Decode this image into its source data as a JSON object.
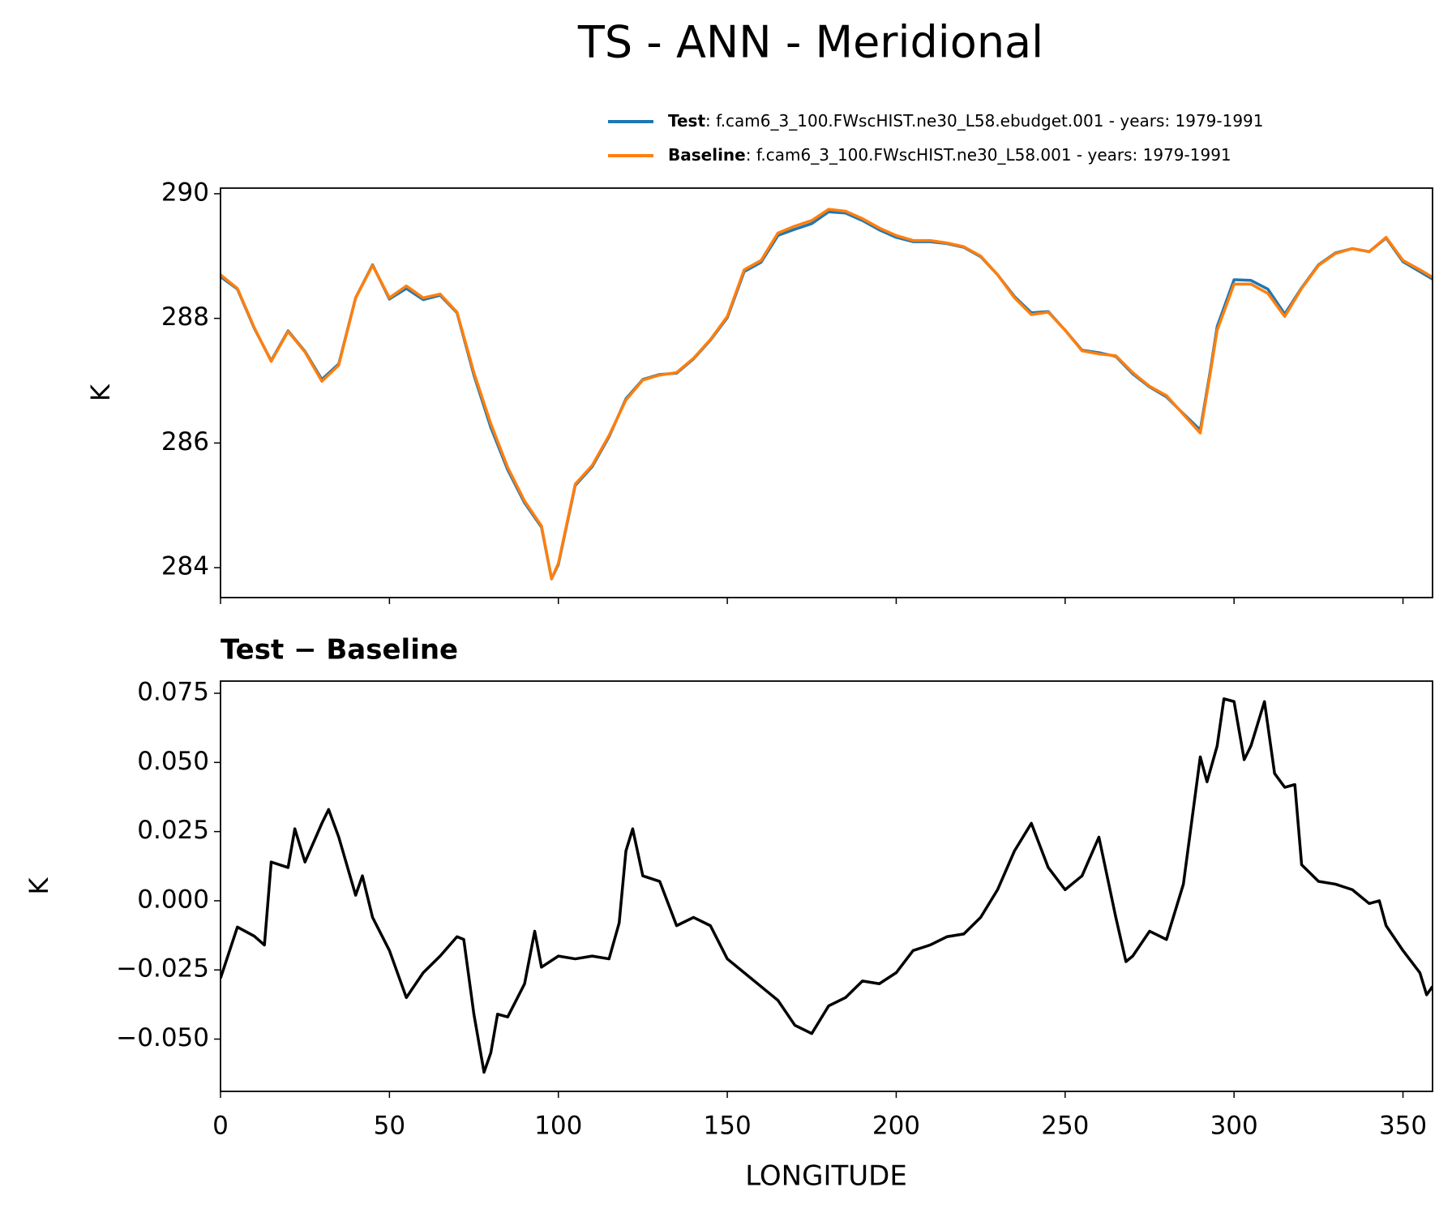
{
  "chart_data": [
    {
      "type": "line",
      "title": "TS - ANN - Meridional",
      "ylabel": "K",
      "x": [
        0,
        5,
        10,
        15,
        20,
        25,
        30,
        35,
        40,
        45,
        50,
        55,
        60,
        65,
        70,
        75,
        80,
        85,
        90,
        95,
        98,
        100,
        105,
        110,
        115,
        120,
        125,
        130,
        135,
        140,
        145,
        150,
        155,
        160,
        165,
        170,
        175,
        180,
        185,
        190,
        195,
        200,
        205,
        210,
        215,
        220,
        225,
        230,
        235,
        240,
        245,
        250,
        255,
        260,
        265,
        270,
        275,
        280,
        285,
        290,
        293,
        295,
        300,
        305,
        310,
        315,
        320,
        325,
        330,
        335,
        340,
        345,
        350,
        355,
        358.75
      ],
      "series": [
        {
          "name": "Test",
          "label": ": f.cam6_3_100.FWscHIST.ne30_L58.ebudget.001 - years: 1979-1991",
          "color": "#1f77b4",
          "values": [
            288.67,
            288.47,
            287.84,
            287.32,
            287.8,
            287.47,
            287.02,
            287.27,
            288.33,
            288.86,
            288.31,
            288.48,
            288.3,
            288.37,
            288.09,
            287.09,
            286.25,
            285.57,
            285.04,
            284.65,
            283.82,
            284.05,
            285.32,
            285.62,
            286.1,
            286.71,
            287.02,
            287.1,
            287.12,
            287.35,
            287.65,
            288.01,
            288.75,
            288.9,
            289.33,
            289.43,
            289.52,
            289.71,
            289.69,
            289.57,
            289.42,
            289.3,
            289.23,
            289.23,
            289.2,
            289.14,
            288.99,
            288.7,
            288.35,
            288.09,
            288.11,
            287.81,
            287.49,
            287.45,
            287.39,
            287.11,
            286.9,
            286.74,
            286.47,
            286.21,
            287.17,
            287.87,
            288.62,
            288.61,
            288.47,
            288.07,
            288.49,
            288.86,
            289.05,
            289.12,
            289.07,
            289.29,
            288.91,
            288.75,
            288.63
          ]
        },
        {
          "name": "Baseline",
          "label": ": f.cam6_3_100.FWscHIST.ne30_L58.001 - years: 1979-1991",
          "color": "#ff7f0e",
          "values": [
            288.7,
            288.48,
            287.85,
            287.31,
            287.79,
            287.46,
            286.99,
            287.25,
            288.33,
            288.85,
            288.33,
            288.52,
            288.33,
            288.39,
            288.1,
            287.13,
            286.31,
            285.61,
            285.07,
            284.67,
            283.82,
            284.07,
            285.34,
            285.64,
            286.12,
            286.69,
            287.01,
            287.09,
            287.13,
            287.36,
            287.66,
            288.03,
            288.78,
            288.93,
            289.37,
            289.48,
            289.57,
            289.75,
            289.72,
            289.6,
            289.45,
            289.33,
            289.25,
            289.25,
            289.21,
            289.15,
            289.0,
            288.7,
            288.33,
            288.06,
            288.1,
            287.81,
            287.48,
            287.43,
            287.4,
            287.13,
            286.91,
            286.76,
            286.46,
            286.16,
            287.13,
            287.81,
            288.55,
            288.55,
            288.4,
            288.03,
            288.48,
            288.85,
            289.04,
            289.12,
            289.07,
            289.3,
            288.93,
            288.78,
            288.66
          ]
        }
      ],
      "xlim": [
        0,
        358.75
      ],
      "xticks": [
        0,
        50,
        100,
        150,
        200,
        250,
        300,
        350
      ],
      "ylim": [
        283.52,
        290.09
      ],
      "yticks": [
        284,
        286,
        288,
        290
      ],
      "legend": "upper right"
    },
    {
      "type": "line",
      "title": "Test − Baseline",
      "xlabel": "LONGITUDE",
      "ylabel": "K",
      "x": [
        0,
        5,
        10,
        13,
        15,
        20,
        22,
        25,
        30,
        32,
        35,
        40,
        42,
        45,
        50,
        55,
        60,
        65,
        70,
        72,
        75,
        78,
        80,
        82,
        85,
        90,
        93,
        95,
        100,
        105,
        110,
        115,
        118,
        120,
        122,
        125,
        130,
        135,
        140,
        145,
        150,
        155,
        160,
        165,
        170,
        175,
        180,
        185,
        190,
        195,
        200,
        205,
        210,
        215,
        220,
        225,
        230,
        235,
        240,
        245,
        250,
        255,
        260,
        265,
        268,
        270,
        275,
        280,
        285,
        290,
        292,
        295,
        297,
        300,
        303,
        305,
        309,
        312,
        315,
        318,
        320,
        325,
        330,
        335,
        340,
        343,
        345,
        350,
        355,
        357,
        358.75
      ],
      "series": [
        {
          "name": "Test − Baseline",
          "color": "#000000",
          "values": [
            -0.028,
            -0.0095,
            -0.0128,
            -0.016,
            0.014,
            0.012,
            0.026,
            0.014,
            0.028,
            0.033,
            0.023,
            0.002,
            0.009,
            -0.006,
            -0.018,
            -0.035,
            -0.026,
            -0.02,
            -0.013,
            -0.014,
            -0.041,
            -0.062,
            -0.055,
            -0.041,
            -0.042,
            -0.03,
            -0.011,
            -0.024,
            -0.02,
            -0.021,
            -0.02,
            -0.021,
            -0.008,
            0.018,
            0.026,
            0.009,
            0.007,
            -0.009,
            -0.006,
            -0.009,
            -0.021,
            -0.026,
            -0.031,
            -0.036,
            -0.045,
            -0.048,
            -0.038,
            -0.035,
            -0.029,
            -0.03,
            -0.026,
            -0.018,
            -0.016,
            -0.013,
            -0.012,
            -0.006,
            0.004,
            0.018,
            0.028,
            0.012,
            0.004,
            0.009,
            0.023,
            -0.006,
            -0.022,
            -0.02,
            -0.011,
            -0.014,
            0.006,
            0.052,
            0.043,
            0.056,
            0.073,
            0.072,
            0.051,
            0.056,
            0.072,
            0.046,
            0.041,
            0.042,
            0.013,
            0.007,
            0.006,
            0.004,
            -0.001,
            0.0,
            -0.009,
            -0.018,
            -0.026,
            -0.034,
            -0.031
          ]
        }
      ],
      "xlim": [
        0,
        358.75
      ],
      "xticks": [
        0,
        50,
        100,
        150,
        200,
        250,
        300,
        350
      ],
      "ylim": [
        -0.0689,
        0.0794
      ],
      "yticks": [
        {
          "value": -0.05,
          "label": "−0.050"
        },
        {
          "value": -0.025,
          "label": "−0.025"
        },
        {
          "value": 0,
          "label": "0.000"
        },
        {
          "value": 0.025,
          "label": "0.025"
        },
        {
          "value": 0.05,
          "label": "0.050"
        },
        {
          "value": 0.075,
          "label": "0.075"
        }
      ]
    }
  ]
}
